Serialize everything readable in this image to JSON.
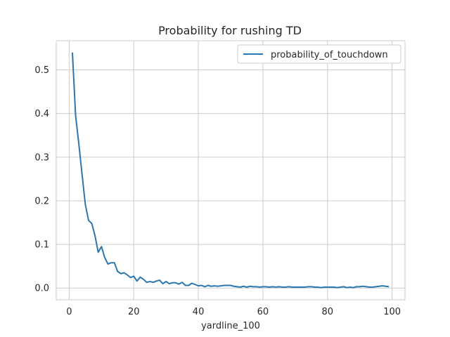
{
  "chart_data": {
    "type": "line",
    "title": "Probability for rushing TD",
    "xlabel": "yardline_100",
    "ylabel": "",
    "xlim": [
      -4,
      104
    ],
    "ylim": [
      -0.027,
      0.567
    ],
    "xticks": [
      0,
      20,
      40,
      60,
      80,
      100
    ],
    "yticks": [
      0.0,
      0.1,
      0.2,
      0.3,
      0.4,
      0.5
    ],
    "grid": true,
    "legend_position": "top-right",
    "series": [
      {
        "name": "probability_of_touchdown",
        "color": "#2a77b0",
        "x": [
          1,
          2,
          3,
          4,
          5,
          6,
          7,
          8,
          9,
          10,
          11,
          12,
          13,
          14,
          15,
          16,
          17,
          18,
          19,
          20,
          21,
          22,
          23,
          24,
          25,
          26,
          27,
          28,
          29,
          30,
          31,
          32,
          33,
          34,
          35,
          36,
          37,
          38,
          39,
          40,
          41,
          42,
          43,
          44,
          45,
          46,
          47,
          48,
          49,
          50,
          51,
          52,
          53,
          54,
          55,
          56,
          57,
          58,
          59,
          60,
          61,
          62,
          63,
          64,
          65,
          66,
          67,
          68,
          69,
          70,
          71,
          72,
          73,
          74,
          75,
          76,
          77,
          78,
          79,
          80,
          81,
          82,
          83,
          84,
          85,
          86,
          87,
          88,
          89,
          90,
          91,
          92,
          93,
          94,
          95,
          96,
          97,
          98,
          99
        ],
        "values": [
          0.54,
          0.395,
          0.33,
          0.26,
          0.192,
          0.155,
          0.148,
          0.12,
          0.082,
          0.095,
          0.07,
          0.055,
          0.058,
          0.058,
          0.038,
          0.033,
          0.035,
          0.03,
          0.024,
          0.027,
          0.016,
          0.025,
          0.02,
          0.013,
          0.015,
          0.013,
          0.016,
          0.018,
          0.01,
          0.015,
          0.01,
          0.012,
          0.012,
          0.009,
          0.013,
          0.006,
          0.006,
          0.011,
          0.008,
          0.005,
          0.006,
          0.003,
          0.006,
          0.004,
          0.005,
          0.004,
          0.005,
          0.006,
          0.006,
          0.006,
          0.004,
          0.003,
          0.002,
          0.004,
          0.002,
          0.004,
          0.003,
          0.003,
          0.002,
          0.003,
          0.003,
          0.002,
          0.003,
          0.002,
          0.003,
          0.002,
          0.002,
          0.003,
          0.002,
          0.002,
          0.002,
          0.002,
          0.002,
          0.003,
          0.003,
          0.002,
          0.002,
          0.001,
          0.002,
          0.002,
          0.002,
          0.002,
          0.001,
          0.002,
          0.003,
          0.001,
          0.002,
          0.001,
          0.003,
          0.003,
          0.004,
          0.003,
          0.002,
          0.002,
          0.003,
          0.004,
          0.005,
          0.004,
          0.003
        ]
      }
    ]
  }
}
